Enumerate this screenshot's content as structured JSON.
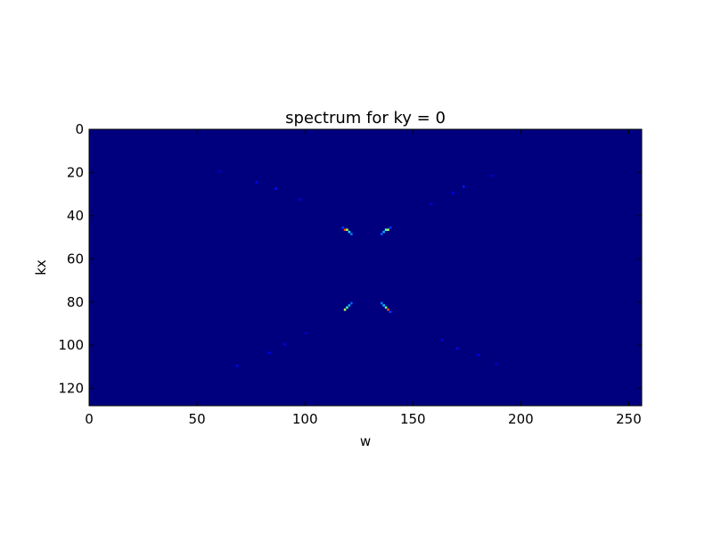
{
  "chart_data": {
    "type": "heatmap",
    "title": "spectrum for ky = 0",
    "xlabel": "w",
    "ylabel": "kx",
    "xlim": [
      0,
      256
    ],
    "ylim": [
      128,
      0
    ],
    "y_axis_inverted": true,
    "xticks": [
      0,
      50,
      100,
      150,
      200,
      250
    ],
    "yticks": [
      0,
      20,
      40,
      60,
      80,
      100,
      120
    ],
    "grid": false,
    "colormap": "jet",
    "background_value": 0,
    "value_range": [
      0,
      1
    ],
    "points": [
      {
        "w": 118,
        "kx": 46,
        "v": 0.8
      },
      {
        "w": 119,
        "kx": 46,
        "v": 0.55
      },
      {
        "w": 120,
        "kx": 47,
        "v": 0.35
      },
      {
        "w": 121,
        "kx": 48,
        "v": 0.25
      },
      {
        "w": 117,
        "kx": 45,
        "v": 0.18
      },
      {
        "w": 138,
        "kx": 46,
        "v": 0.55
      },
      {
        "w": 137,
        "kx": 46,
        "v": 0.45
      },
      {
        "w": 136,
        "kx": 47,
        "v": 0.3
      },
      {
        "w": 135,
        "kx": 48,
        "v": 0.22
      },
      {
        "w": 139,
        "kx": 45,
        "v": 0.18
      },
      {
        "w": 118,
        "kx": 83,
        "v": 0.55
      },
      {
        "w": 119,
        "kx": 82,
        "v": 0.45
      },
      {
        "w": 120,
        "kx": 81,
        "v": 0.3
      },
      {
        "w": 121,
        "kx": 80,
        "v": 0.22
      },
      {
        "w": 138,
        "kx": 83,
        "v": 0.8
      },
      {
        "w": 137,
        "kx": 82,
        "v": 0.5
      },
      {
        "w": 136,
        "kx": 81,
        "v": 0.32
      },
      {
        "w": 135,
        "kx": 80,
        "v": 0.25
      },
      {
        "w": 139,
        "kx": 84,
        "v": 0.18
      },
      {
        "w": 77,
        "kx": 24,
        "v": 0.12
      },
      {
        "w": 86,
        "kx": 27,
        "v": 0.14
      },
      {
        "w": 97,
        "kx": 32,
        "v": 0.1
      },
      {
        "w": 60,
        "kx": 19,
        "v": 0.08
      },
      {
        "w": 158,
        "kx": 34,
        "v": 0.1
      },
      {
        "w": 168,
        "kx": 29,
        "v": 0.12
      },
      {
        "w": 173,
        "kx": 26,
        "v": 0.15
      },
      {
        "w": 186,
        "kx": 21,
        "v": 0.1
      },
      {
        "w": 83,
        "kx": 103,
        "v": 0.12
      },
      {
        "w": 90,
        "kx": 99,
        "v": 0.12
      },
      {
        "w": 68,
        "kx": 109,
        "v": 0.13
      },
      {
        "w": 100,
        "kx": 94,
        "v": 0.08
      },
      {
        "w": 163,
        "kx": 97,
        "v": 0.1
      },
      {
        "w": 170,
        "kx": 101,
        "v": 0.13
      },
      {
        "w": 180,
        "kx": 104,
        "v": 0.12
      },
      {
        "w": 188,
        "kx": 108,
        "v": 0.08
      }
    ]
  }
}
